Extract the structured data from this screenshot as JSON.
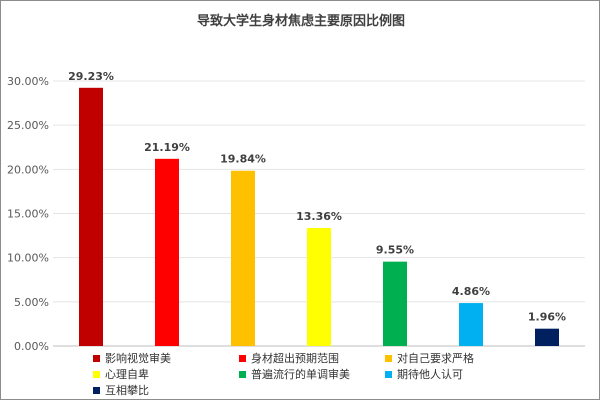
{
  "chart_data": {
    "type": "bar",
    "title": "导致大学生身材焦虑主要原因比例图",
    "categories": [
      "影响视觉审美",
      "身材超出预期范围",
      "对自己要求严格",
      "心理自卑",
      "普遍流行的单调审美",
      "期待他人认可",
      "互相攀比"
    ],
    "values": [
      29.23,
      21.19,
      19.84,
      13.36,
      9.55,
      4.86,
      1.96
    ],
    "data_labels": [
      "29.23%",
      "21.19%",
      "19.84%",
      "13.36%",
      "9.55%",
      "4.86%",
      "1.96%"
    ],
    "colors": [
      "#c00000",
      "#ff0000",
      "#ffc000",
      "#ffff00",
      "#00b050",
      "#00b0f0",
      "#002060"
    ],
    "yticks": [
      "0.00%",
      "5.00%",
      "10.00%",
      "15.00%",
      "20.00%",
      "25.00%",
      "30.00%"
    ],
    "ylim": [
      0,
      30
    ],
    "grid": true,
    "legend_position": "bottom"
  }
}
